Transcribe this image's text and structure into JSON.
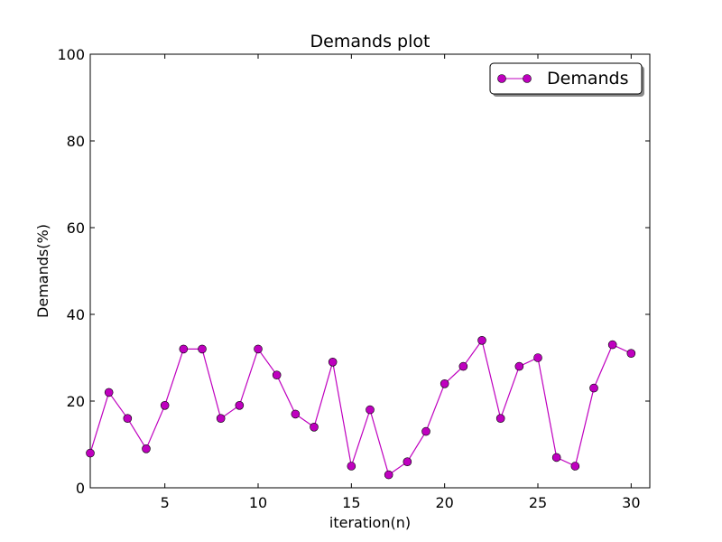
{
  "chart_data": {
    "type": "line",
    "title": "Demands plot",
    "xlabel": "iteration(n)",
    "ylabel": "Demands(%)",
    "xlim": [
      1,
      31
    ],
    "ylim": [
      0,
      100
    ],
    "xticks": [
      5,
      10,
      15,
      20,
      25,
      30
    ],
    "yticks": [
      0,
      20,
      40,
      60,
      80,
      100
    ],
    "grid": false,
    "legend": "top-right",
    "series": [
      {
        "name": "Demands",
        "color": "#bf00bf",
        "marker": "circle",
        "x": [
          1,
          2,
          3,
          4,
          5,
          6,
          7,
          8,
          9,
          10,
          11,
          12,
          13,
          14,
          15,
          16,
          17,
          18,
          19,
          20,
          21,
          22,
          23,
          24,
          25,
          26,
          27,
          28,
          29,
          30
        ],
        "values": [
          8,
          22,
          16,
          9,
          19,
          32,
          32,
          16,
          19,
          32,
          26,
          17,
          14,
          29,
          5,
          18,
          3,
          6,
          13,
          24,
          28,
          34,
          16,
          28,
          30,
          7,
          5,
          23,
          33,
          31
        ]
      }
    ]
  }
}
